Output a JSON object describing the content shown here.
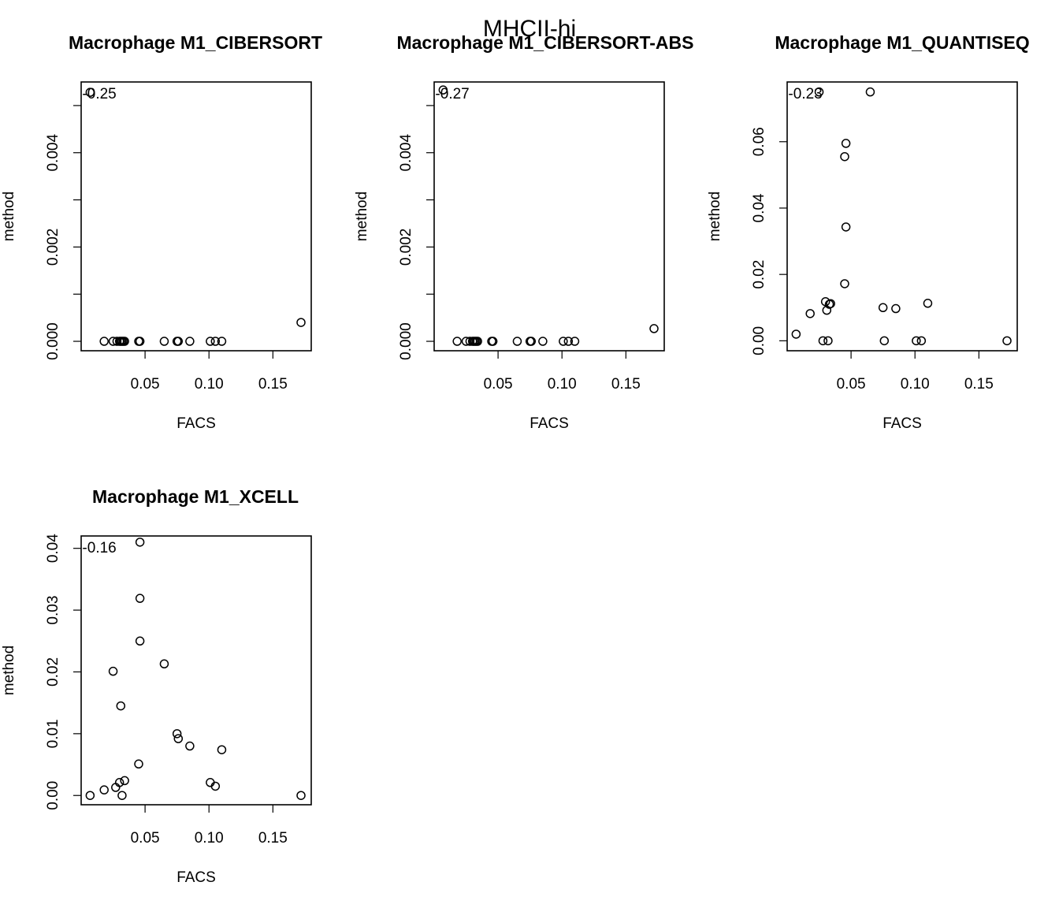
{
  "figure_title": "MHCII-hi",
  "chart_data": [
    {
      "type": "scatter",
      "title": "Macrophage M1_CIBERSORT",
      "xlabel": "FACS",
      "ylabel": "method",
      "annotation": "r=-0.25",
      "xlim": [
        0.0,
        0.18
      ],
      "ylim": [
        -0.0002,
        0.0055
      ],
      "xticks": [
        0.05,
        0.1,
        0.15
      ],
      "xtick_labels": [
        "0.05",
        "0.10",
        "0.15"
      ],
      "yticks": [
        0,
        0.001,
        0.002,
        0.003,
        0.004,
        0.005
      ],
      "ytick_labels": [
        "0.000",
        "",
        "0.002",
        "",
        "0.004",
        ""
      ],
      "x": [
        0.007,
        0.018,
        0.025,
        0.028,
        0.03,
        0.031,
        0.032,
        0.033,
        0.034,
        0.045,
        0.046,
        0.065,
        0.075,
        0.076,
        0.085,
        0.101,
        0.105,
        0.11,
        0.172
      ],
      "y": [
        0.00528,
        0,
        0,
        0,
        0,
        0,
        0,
        0,
        0,
        0,
        0,
        0,
        0,
        0,
        0,
        0,
        0,
        0,
        0.0004
      ]
    },
    {
      "type": "scatter",
      "title": "Macrophage M1_CIBERSORT-ABS",
      "xlabel": "FACS",
      "ylabel": "method",
      "annotation": "r=-0.27",
      "xlim": [
        0.0,
        0.18
      ],
      "ylim": [
        -0.0002,
        0.0055
      ],
      "xticks": [
        0.05,
        0.1,
        0.15
      ],
      "xtick_labels": [
        "0.05",
        "0.10",
        "0.15"
      ],
      "yticks": [
        0,
        0.001,
        0.002,
        0.003,
        0.004,
        0.005
      ],
      "ytick_labels": [
        "0.000",
        "",
        "0.002",
        "",
        "0.004",
        ""
      ],
      "x": [
        0.007,
        0.018,
        0.025,
        0.028,
        0.03,
        0.031,
        0.032,
        0.033,
        0.034,
        0.045,
        0.046,
        0.065,
        0.075,
        0.076,
        0.085,
        0.101,
        0.105,
        0.11,
        0.172
      ],
      "y": [
        0.00533,
        0,
        0,
        0,
        0,
        0,
        0,
        0,
        0,
        0,
        0,
        0,
        0,
        0,
        0,
        0,
        0,
        0,
        0.00027
      ]
    },
    {
      "type": "scatter",
      "title": "Macrophage M1_QUANTISEQ",
      "xlabel": "FACS",
      "ylabel": "method",
      "annotation": "r=-0.23",
      "xlim": [
        0.0,
        0.18
      ],
      "ylim": [
        -0.003,
        0.078
      ],
      "xticks": [
        0.05,
        0.1,
        0.15
      ],
      "xtick_labels": [
        "0.05",
        "0.10",
        "0.15"
      ],
      "yticks": [
        0,
        0.02,
        0.04,
        0.06
      ],
      "ytick_labels": [
        "0.00",
        "0.02",
        "0.04",
        "0.06"
      ],
      "x": [
        0.007,
        0.018,
        0.025,
        0.028,
        0.03,
        0.031,
        0.032,
        0.033,
        0.034,
        0.045,
        0.045,
        0.046,
        0.046,
        0.065,
        0.075,
        0.076,
        0.085,
        0.101,
        0.105,
        0.11,
        0.172
      ],
      "y": [
        0.002,
        0.0082,
        0.075,
        0,
        0.0118,
        0.0092,
        0,
        0.011,
        0.0112,
        0.0172,
        0.0555,
        0.0595,
        0.0343,
        0.075,
        0.01,
        0,
        0.0097,
        0,
        0,
        0.0113,
        0
      ]
    },
    {
      "type": "scatter",
      "title": "Macrophage M1_XCELL",
      "xlabel": "FACS",
      "ylabel": "method",
      "annotation": "r=-0.16",
      "xlim": [
        0.0,
        0.18
      ],
      "ylim": [
        -0.0015,
        0.042
      ],
      "xticks": [
        0.05,
        0.1,
        0.15
      ],
      "xtick_labels": [
        "0.05",
        "0.10",
        "0.15"
      ],
      "yticks": [
        0,
        0.01,
        0.02,
        0.03,
        0.04
      ],
      "ytick_labels": [
        "0.00",
        "0.01",
        "0.02",
        "0.03",
        "0.04"
      ],
      "x": [
        0.007,
        0.018,
        0.025,
        0.027,
        0.03,
        0.031,
        0.032,
        0.034,
        0.045,
        0.046,
        0.046,
        0.046,
        0.065,
        0.075,
        0.076,
        0.085,
        0.101,
        0.105,
        0.11,
        0.172
      ],
      "y": [
        0,
        0.0009,
        0.0201,
        0.0013,
        0.0021,
        0.0145,
        0,
        0.0024,
        0.0051,
        0.025,
        0.0319,
        0.041,
        0.0213,
        0.01,
        0.0092,
        0.008,
        0.0021,
        0.0015,
        0.0074,
        0
      ]
    }
  ]
}
